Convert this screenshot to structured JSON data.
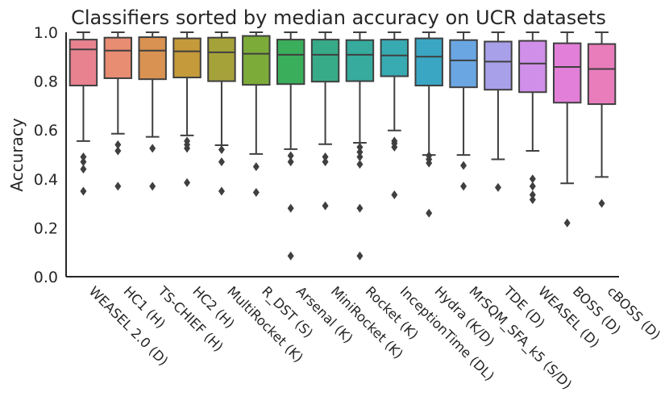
{
  "chart_data": {
    "type": "box",
    "title": "Classifiers sorted by median accuracy on UCR datasets",
    "xlabel": "",
    "ylabel": "Accuracy",
    "ylim": [
      0.0,
      1.0
    ],
    "yticks": [
      "0.0",
      "0.2",
      "0.4",
      "0.6",
      "0.8",
      "1.0"
    ],
    "grid": false,
    "legend": "none",
    "series": [
      {
        "name": "WEASEL 2.0 (D)",
        "color": "#e8828f",
        "whisker_low": 0.555,
        "q1": 0.782,
        "median": 0.93,
        "q3": 0.97,
        "whisker_high": 1.0,
        "outliers": [
          0.35,
          0.44,
          0.47,
          0.49
        ]
      },
      {
        "name": "HC1 (H)",
        "color": "#e88c72",
        "whisker_low": 0.585,
        "q1": 0.812,
        "median": 0.925,
        "q3": 0.978,
        "whisker_high": 1.0,
        "outliers": [
          0.37,
          0.515,
          0.54
        ]
      },
      {
        "name": "TS-CHIEF (H)",
        "color": "#d99252",
        "whisker_low": 0.572,
        "q1": 0.808,
        "median": 0.925,
        "q3": 0.98,
        "whisker_high": 1.0,
        "outliers": [
          0.37,
          0.525
        ]
      },
      {
        "name": "HC2 (H)",
        "color": "#c49a3a",
        "whisker_low": 0.578,
        "q1": 0.815,
        "median": 0.922,
        "q3": 0.975,
        "whisker_high": 1.0,
        "outliers": [
          0.385,
          0.525,
          0.54,
          0.555
        ]
      },
      {
        "name": "MultiRocket (K)",
        "color": "#a6a23a",
        "whisker_low": 0.538,
        "q1": 0.8,
        "median": 0.918,
        "q3": 0.978,
        "whisker_high": 1.0,
        "outliers": [
          0.35,
          0.47,
          0.52
        ]
      },
      {
        "name": "R_DST (S)",
        "color": "#7dab3a",
        "whisker_low": 0.502,
        "q1": 0.785,
        "median": 0.912,
        "q3": 0.985,
        "whisker_high": 1.0,
        "outliers": [
          0.345,
          0.45
        ]
      },
      {
        "name": "Arsenal (K)",
        "color": "#3aae5b",
        "whisker_low": 0.522,
        "q1": 0.788,
        "median": 0.908,
        "q3": 0.97,
        "whisker_high": 1.0,
        "outliers": [
          0.085,
          0.28,
          0.47,
          0.495
        ]
      },
      {
        "name": "MiniRocket (K)",
        "color": "#37ab87",
        "whisker_low": 0.542,
        "q1": 0.798,
        "median": 0.908,
        "q3": 0.97,
        "whisker_high": 1.0,
        "outliers": [
          0.29,
          0.47,
          0.49
        ]
      },
      {
        "name": "Rocket (K)",
        "color": "#36ab9e",
        "whisker_low": 0.548,
        "q1": 0.8,
        "median": 0.908,
        "q3": 0.968,
        "whisker_high": 1.0,
        "outliers": [
          0.085,
          0.28,
          0.46,
          0.49,
          0.51,
          0.53
        ]
      },
      {
        "name": "InceptionTime (DL)",
        "color": "#38aab2",
        "whisker_low": 0.598,
        "q1": 0.82,
        "median": 0.905,
        "q3": 0.97,
        "whisker_high": 1.0,
        "outliers": [
          0.335,
          0.53,
          0.545,
          0.555
        ]
      },
      {
        "name": "Hydra (K/D)",
        "color": "#3aa6c4",
        "whisker_low": 0.498,
        "q1": 0.782,
        "median": 0.9,
        "q3": 0.975,
        "whisker_high": 1.0,
        "outliers": [
          0.26,
          0.465,
          0.48,
          0.495
        ]
      },
      {
        "name": "MrSQM_SFA_k5 (S/D)",
        "color": "#6aa6e2",
        "whisker_low": 0.498,
        "q1": 0.775,
        "median": 0.885,
        "q3": 0.968,
        "whisker_high": 1.0,
        "outliers": [
          0.37,
          0.455
        ]
      },
      {
        "name": "TDE (D)",
        "color": "#a9a0ea",
        "whisker_low": 0.48,
        "q1": 0.765,
        "median": 0.88,
        "q3": 0.962,
        "whisker_high": 1.0,
        "outliers": [
          0.365
        ]
      },
      {
        "name": "WEASEL (D)",
        "color": "#d08fe8",
        "whisker_low": 0.515,
        "q1": 0.755,
        "median": 0.872,
        "q3": 0.965,
        "whisker_high": 1.0,
        "outliers": [
          0.315,
          0.335,
          0.37,
          0.4
        ]
      },
      {
        "name": "BOSS (D)",
        "color": "#e27fd8",
        "whisker_low": 0.382,
        "q1": 0.712,
        "median": 0.858,
        "q3": 0.955,
        "whisker_high": 1.0,
        "outliers": [
          0.22
        ]
      },
      {
        "name": "cBOSS (D)",
        "color": "#e97dbc",
        "whisker_low": 0.408,
        "q1": 0.706,
        "median": 0.85,
        "q3": 0.952,
        "whisker_high": 1.0,
        "outliers": [
          0.3
        ]
      }
    ]
  }
}
